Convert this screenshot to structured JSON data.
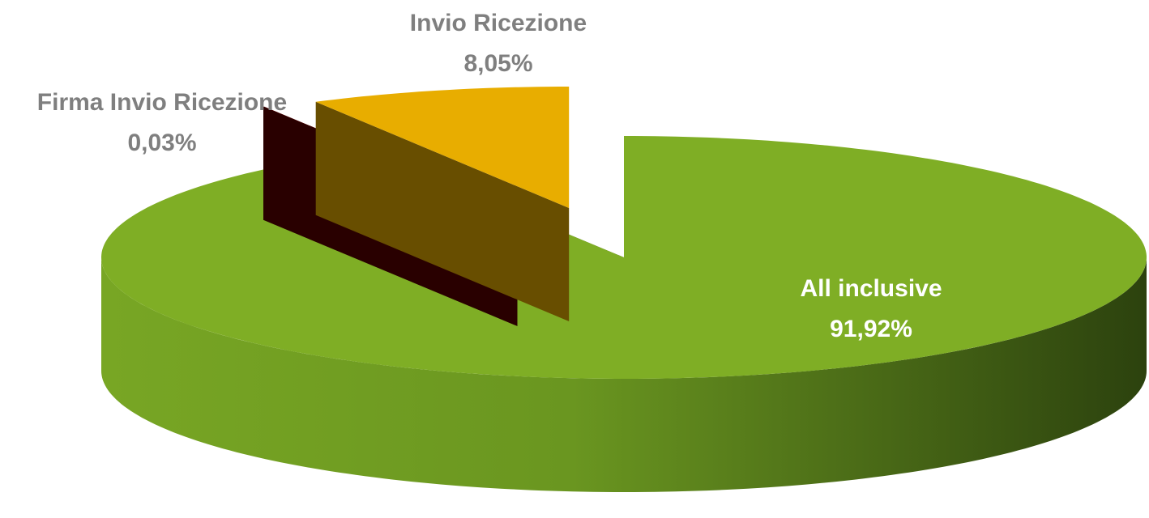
{
  "chart_data": {
    "type": "pie3d",
    "categories": [
      "All inclusive",
      "Firma Invio Ricezione",
      "Invio Ricezione"
    ],
    "values": [
      91.92,
      0.03,
      8.05
    ],
    "value_labels": [
      "91,92%",
      "0,03%",
      "8,05%"
    ],
    "colors": [
      "#7fae25",
      "#5c0000",
      "#e8ad00"
    ],
    "label_colors": [
      "#ffffff",
      "#7f7f7f",
      "#7f7f7f"
    ]
  }
}
